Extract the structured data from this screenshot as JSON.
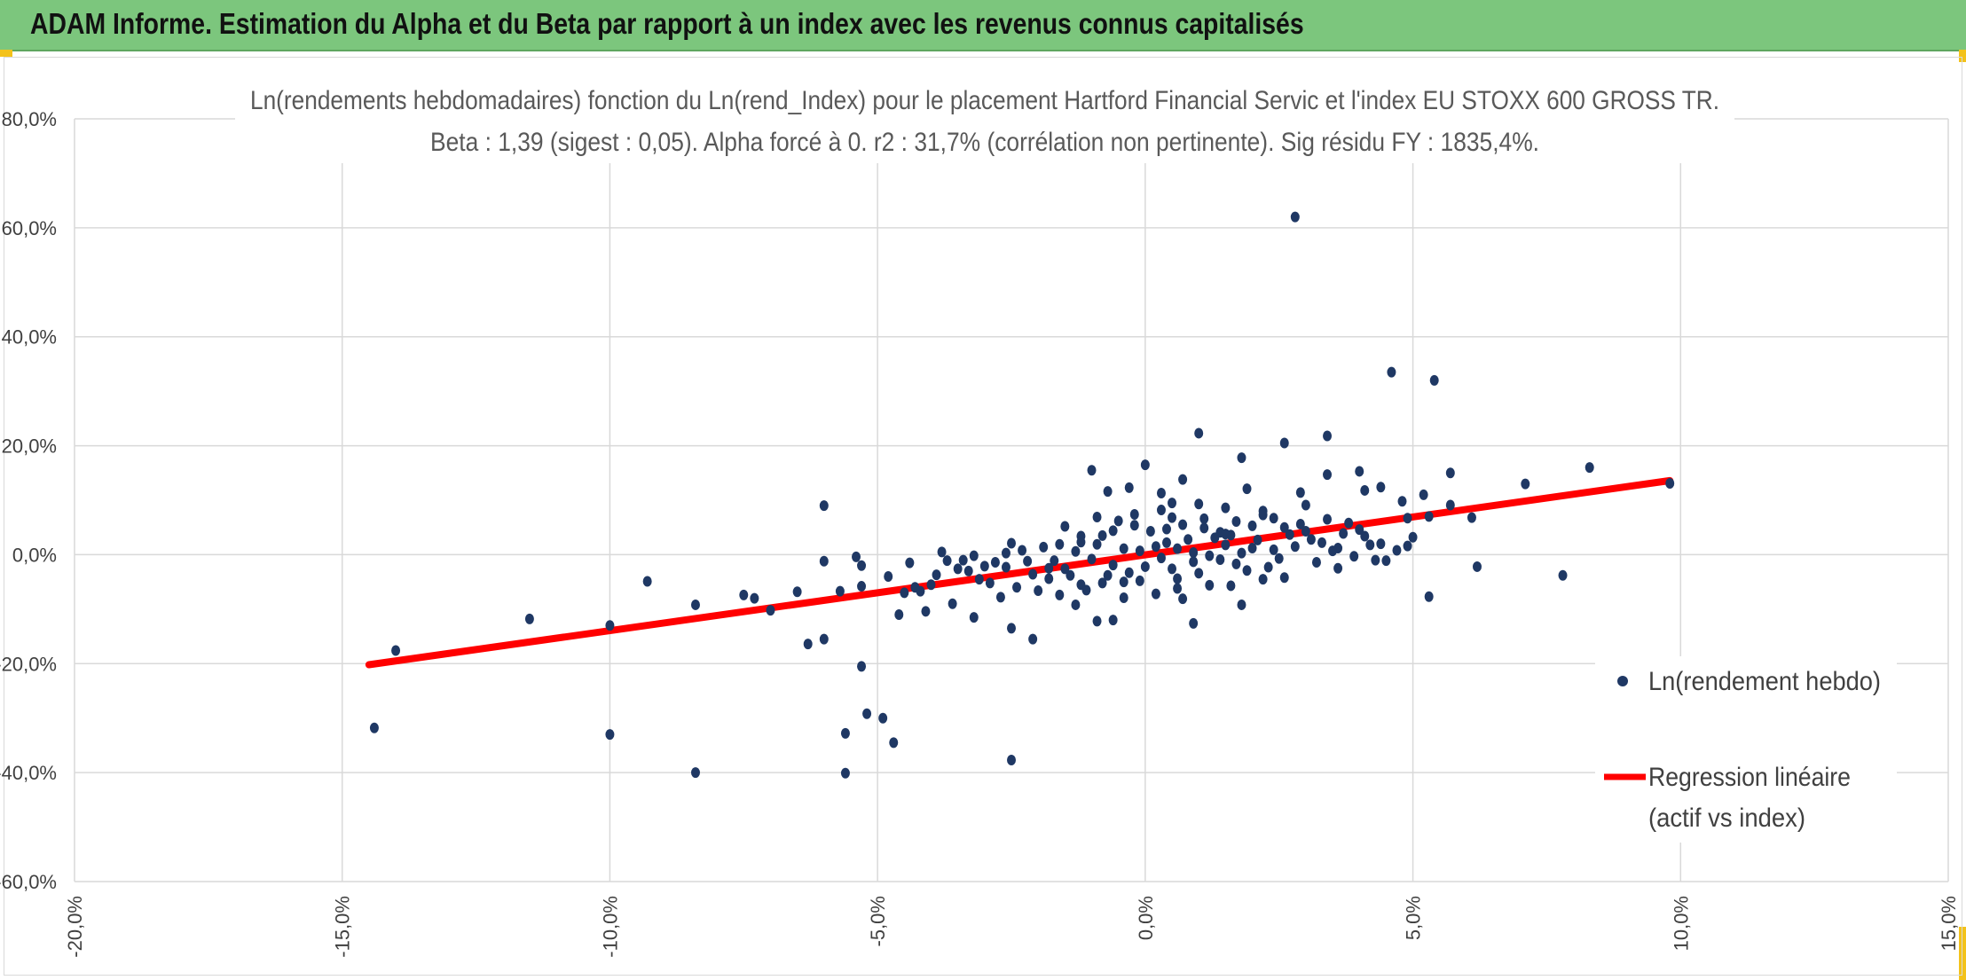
{
  "header": {
    "title": "ADAM Informe. Estimation du Alpha et du Beta par rapport à un index avec les revenus connus capitalisés"
  },
  "chart_data": {
    "type": "scatter",
    "title": "Ln(rendements hebdomadaires) fonction du Ln(rend_Index) pour le placement Hartford Financial Servic et l'index EU STOXX 600 GROSS TR.",
    "subtitle": "Beta : 1,39 (sigest : 0,05). Alpha forcé à 0. r2 : 31,7% (corrélation non pertinente). Sig résidu FY : 1835,4%.",
    "xlim": [
      -20,
      15
    ],
    "ylim": [
      -60,
      80
    ],
    "x_ticks": [
      -20,
      -15,
      -10,
      -5,
      0,
      5,
      10,
      15
    ],
    "y_ticks": [
      -60,
      -40,
      -20,
      0,
      20,
      40,
      60,
      80
    ],
    "x_tick_labels": [
      "-20,0%",
      "-15,0%",
      "-10,0%",
      "-5,0%",
      "0,0%",
      "5,0%",
      "10,0%",
      "15,0%"
    ],
    "y_tick_labels": [
      "-60,0%",
      "-40,0%",
      "-20,0%",
      "0,0%",
      "20,0%",
      "40,0%",
      "60,0%",
      "80,0%"
    ],
    "grid": true,
    "legend_position": "right",
    "colors": {
      "points": "#1f3864",
      "regression": "#ff0000",
      "header": "#7cc67d"
    },
    "series": [
      {
        "name": "Ln(rendement hebdo)",
        "kind": "scatter",
        "points": [
          [
            2.8,
            62
          ],
          [
            4.6,
            33.5
          ],
          [
            5.4,
            32
          ],
          [
            1.0,
            22.3
          ],
          [
            3.4,
            21.8
          ],
          [
            2.6,
            20.5
          ],
          [
            1.8,
            17.8
          ],
          [
            0,
            16.5
          ],
          [
            8.3,
            16
          ],
          [
            4.0,
            15.3
          ],
          [
            -1.0,
            15.5
          ],
          [
            5.7,
            15
          ],
          [
            3.4,
            14.7
          ],
          [
            0.7,
            13.8
          ],
          [
            7.1,
            13
          ],
          [
            9.8,
            13.1
          ],
          [
            4.4,
            12.4
          ],
          [
            1.9,
            12.1
          ],
          [
            -0.3,
            12.3
          ],
          [
            2.9,
            11.4
          ],
          [
            4.1,
            11.8
          ],
          [
            -0.7,
            11.6
          ],
          [
            5.2,
            11
          ],
          [
            0.3,
            11.3
          ],
          [
            4.8,
            9.8
          ],
          [
            -6.0,
            9
          ],
          [
            3.0,
            9.1
          ],
          [
            5.7,
            9.1
          ],
          [
            1.5,
            8.6
          ],
          [
            6.1,
            6.8
          ],
          [
            5.3,
            7
          ],
          [
            4.9,
            6.7
          ],
          [
            2.2,
            8
          ],
          [
            0.5,
            9.5
          ],
          [
            -1.5,
            5.2
          ],
          [
            3.7,
            3.9
          ],
          [
            4.9,
            1.6
          ],
          [
            6.2,
            -2.2
          ],
          [
            7.8,
            -3.8
          ],
          [
            5.3,
            -7.7
          ],
          [
            4.3,
            -1
          ],
          [
            3.6,
            1.2
          ],
          [
            2.2,
            -4.5
          ],
          [
            1.8,
            -9.2
          ],
          [
            0.9,
            -12.6
          ],
          [
            -0.6,
            -12
          ],
          [
            -0.9,
            -12.2
          ],
          [
            -1.3,
            -9.2
          ],
          [
            -2.1,
            -15.5
          ],
          [
            -2.5,
            -13.5
          ],
          [
            -2.5,
            -37.7
          ],
          [
            -3.2,
            -11.5
          ],
          [
            -3.6,
            -9
          ],
          [
            -4.1,
            -10.4
          ],
          [
            -4.6,
            -11
          ],
          [
            -5.3,
            -2
          ],
          [
            -5.3,
            -20.5
          ],
          [
            -5.2,
            -29.2
          ],
          [
            -4.9,
            -30
          ],
          [
            -5.6,
            -32.8
          ],
          [
            -4.7,
            -34.5
          ],
          [
            -5.6,
            -40.1
          ],
          [
            -6.3,
            -16.4
          ],
          [
            -5.7,
            -6.7
          ],
          [
            -6.5,
            -6.8
          ],
          [
            -6.0,
            -1.2
          ],
          [
            -7.0,
            -10.2
          ],
          [
            -7.3,
            -8
          ],
          [
            -7.5,
            -7.4
          ],
          [
            -8.4,
            -9.2
          ],
          [
            -8.4,
            -40
          ],
          [
            -9.3,
            -4.9
          ],
          [
            -10.0,
            -13
          ],
          [
            -10.0,
            -33
          ],
          [
            -11.5,
            -11.8
          ],
          [
            -14.4,
            -31.8
          ],
          [
            -14.0,
            -17.6
          ],
          [
            -6.0,
            -15.5
          ],
          [
            -4.5,
            -7
          ],
          [
            -4.0,
            -5.5
          ],
          [
            -3.9,
            -3.7
          ],
          [
            -3.5,
            -2.6
          ],
          [
            -3.1,
            -4.5
          ],
          [
            -2.8,
            -1.4
          ],
          [
            -2.3,
            0.8
          ],
          [
            -1.8,
            -2.5
          ],
          [
            -3.4,
            -1
          ],
          [
            -2.0,
            -6.6
          ],
          [
            -2.7,
            -7.8
          ],
          [
            -1.2,
            -5.5
          ],
          [
            -0.4,
            -5
          ],
          [
            0.6,
            -6.2
          ],
          [
            1.2,
            -5.6
          ],
          [
            -4.3,
            -6
          ],
          [
            -4.8,
            -4
          ],
          [
            -5.3,
            -5.8
          ],
          [
            -5.4,
            -0.4
          ],
          [
            -4.4,
            -1.5
          ],
          [
            -4.2,
            -6.7
          ],
          [
            -3.8,
            0.5
          ],
          [
            -3.7,
            -1.1
          ],
          [
            -3.3,
            -3
          ],
          [
            -2.9,
            -5.2
          ],
          [
            -2.6,
            -2.3
          ],
          [
            -2.4,
            -6
          ],
          [
            -1.6,
            -7.4
          ],
          [
            -1.4,
            -3.8
          ],
          [
            -1.2,
            2.3
          ],
          [
            -0.8,
            3.5
          ],
          [
            -0.5,
            6.2
          ],
          [
            -0.2,
            5.4
          ],
          [
            0.1,
            4.3
          ],
          [
            0.4,
            4.7
          ],
          [
            0.7,
            5.5
          ],
          [
            1.1,
            6.6
          ],
          [
            1.4,
            4.1
          ],
          [
            1.6,
            3.6
          ],
          [
            2.0,
            5.3
          ],
          [
            2.4,
            6.7
          ],
          [
            2.6,
            5
          ],
          [
            3.0,
            4.3
          ],
          [
            3.3,
            2.2
          ],
          [
            3.8,
            5.8
          ],
          [
            4.1,
            3.4
          ],
          [
            4.4,
            2
          ],
          [
            4.7,
            0.8
          ],
          [
            5.0,
            3.2
          ],
          [
            -0.6,
            -1.9
          ],
          [
            -0.3,
            -3.3
          ],
          [
            0.0,
            -2.2
          ],
          [
            0.3,
            -0.6
          ],
          [
            0.6,
            1.1
          ],
          [
            0.9,
            -1.3
          ],
          [
            1.2,
            -0.2
          ],
          [
            1.5,
            1.8
          ],
          [
            1.8,
            0.3
          ],
          [
            2.1,
            2.7
          ],
          [
            2.4,
            0.9
          ],
          [
            2.7,
            3.7
          ],
          [
            3.1,
            2.8
          ],
          [
            -1.0,
            -0.8
          ],
          [
            -1.3,
            0.6
          ],
          [
            -1.7,
            -1.1
          ],
          [
            -2.1,
            -3.6
          ],
          [
            -1.9,
            1.4
          ],
          [
            -1.5,
            -2.6
          ],
          [
            -0.9,
            1.9
          ],
          [
            -0.7,
            -3.8
          ],
          [
            0.2,
            1.5
          ],
          [
            0.5,
            -2.6
          ],
          [
            0.8,
            2.8
          ],
          [
            1.0,
            -3.4
          ],
          [
            1.3,
            3.1
          ],
          [
            1.7,
            -1.7
          ],
          [
            2.0,
            1.2
          ],
          [
            2.3,
            -2.3
          ],
          [
            2.8,
            1.5
          ],
          [
            3.2,
            -1.4
          ],
          [
            3.5,
            0.7
          ],
          [
            3.9,
            -0.3
          ],
          [
            4.2,
            1.8
          ],
          [
            -0.1,
            0.7
          ],
          [
            0.4,
            2.2
          ],
          [
            -0.4,
            1.1
          ],
          [
            0.9,
            0.4
          ],
          [
            1.4,
            -0.9
          ],
          [
            0.6,
            -4.4
          ],
          [
            -0.1,
            -4.8
          ],
          [
            -0.8,
            -5.2
          ],
          [
            1.9,
            -2.9
          ],
          [
            2.5,
            -0.7
          ],
          [
            -2.2,
            -1.2
          ],
          [
            -2.6,
            0.3
          ],
          [
            -3.0,
            -2.1
          ],
          [
            -1.1,
            -6.5
          ],
          [
            0.2,
            -7.2
          ],
          [
            1.5,
            3.8
          ],
          [
            1.1,
            4.9
          ],
          [
            0.5,
            6.8
          ],
          [
            -0.6,
            4.4
          ],
          [
            -1.2,
            3.4
          ],
          [
            -1.6,
            1.9
          ],
          [
            -2.5,
            2.1
          ],
          [
            -3.2,
            -0.2
          ],
          [
            3.6,
            -2.5
          ],
          [
            4.5,
            -1.1
          ],
          [
            4.0,
            4.6
          ],
          [
            3.4,
            6.5
          ],
          [
            2.9,
            5.6
          ],
          [
            2.2,
            7.3
          ],
          [
            1.7,
            6.1
          ],
          [
            0.3,
            8.2
          ],
          [
            -0.2,
            7.4
          ],
          [
            -0.9,
            6.9
          ],
          [
            1.0,
            9.3
          ],
          [
            2.6,
            -4.2
          ],
          [
            1.6,
            -5.7
          ],
          [
            0.7,
            -8.1
          ],
          [
            -0.4,
            -7.9
          ],
          [
            -1.8,
            -4.4
          ]
        ]
      },
      {
        "name": "Regression linéaire (actif vs index)",
        "kind": "line",
        "points": [
          [
            -14.5,
            -20.2
          ],
          [
            9.8,
            13.6
          ]
        ]
      }
    ],
    "legend": [
      {
        "label_lines": [
          "Ln(rendement hebdo)"
        ]
      },
      {
        "label_lines": [
          "Regression linéaire",
          "(actif vs index)"
        ]
      }
    ]
  }
}
